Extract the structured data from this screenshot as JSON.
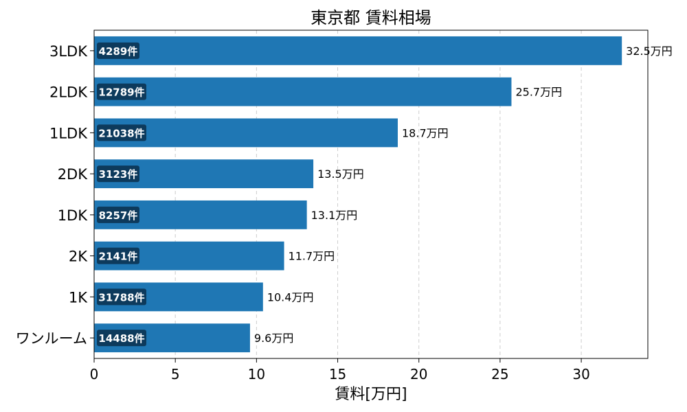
{
  "chart_data": {
    "type": "bar",
    "orientation": "horizontal",
    "title": "東京都 賃料相場",
    "xlabel": "賃料[万円]",
    "ylabel": "",
    "xlim": [
      0,
      34.1
    ],
    "xticks": [
      0,
      5,
      10,
      15,
      20,
      25,
      30
    ],
    "grid": "x-dashed",
    "categories": [
      "3LDK",
      "2LDK",
      "1LDK",
      "2DK",
      "1DK",
      "2K",
      "1K",
      "ワンルーム"
    ],
    "values": [
      32.5,
      25.7,
      18.7,
      13.5,
      13.1,
      11.7,
      10.4,
      9.6
    ],
    "value_labels": [
      "32.5万円",
      "25.7万円",
      "18.7万円",
      "13.5万円",
      "13.1万円",
      "11.7万円",
      "10.4万円",
      "9.6万円"
    ],
    "count_labels": [
      "4289件",
      "12789件",
      "21038件",
      "3123件",
      "8257件",
      "2141件",
      "31788件",
      "14488件"
    ],
    "colors": {
      "bar": "#1f77b4",
      "badge": "#0d3a5c",
      "grid": "#cccccc"
    }
  }
}
